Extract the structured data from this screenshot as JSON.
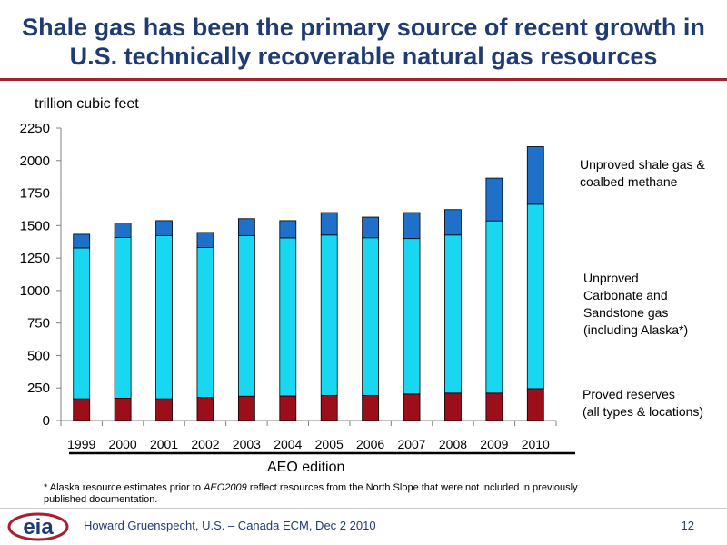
{
  "title_line1": "Shale gas has been the primary source of recent growth in",
  "title_line2": "U.S. technically recoverable natural gas resources",
  "chart_data": {
    "type": "bar",
    "stacked": true,
    "ylabel": "trillion cubic feet",
    "xlabel": "AEO edition",
    "ylim": [
      0,
      2250
    ],
    "yticks": [
      0,
      250,
      500,
      750,
      1000,
      1250,
      1500,
      1750,
      2000,
      2250
    ],
    "categories": [
      "1999",
      "2000",
      "2001",
      "2002",
      "2003",
      "2004",
      "2005",
      "2006",
      "2007",
      "2008",
      "2009",
      "2010"
    ],
    "series": [
      {
        "name": "Proved reserves (all types & locations)",
        "color": "#9b0e1a",
        "values": [
          167,
          172,
          167,
          177,
          187,
          189,
          193,
          193,
          204,
          211,
          211,
          245
        ]
      },
      {
        "name": "Unproved Carbonate and Sandstone gas (including Alaska*)",
        "color": "#19d7f0",
        "values": [
          1161,
          1236,
          1256,
          1154,
          1236,
          1216,
          1234,
          1213,
          1196,
          1216,
          1325,
          1419
        ]
      },
      {
        "name": "Unproved shale gas & coalbed methane",
        "color": "#1f70c8",
        "values": [
          105,
          111,
          115,
          116,
          130,
          133,
          173,
          159,
          200,
          196,
          329,
          443
        ]
      }
    ],
    "legend_placement": "right",
    "grid": false
  },
  "legend": {
    "shale_line1": "Unproved shale gas &",
    "shale_line2": "coalbed methane",
    "carb_line1": "Unproved",
    "carb_line2": "Carbonate and",
    "carb_line3": "Sandstone gas",
    "carb_line4": "(including Alaska*)",
    "proved_line1": "Proved reserves",
    "proved_line2": "(all types & locations)"
  },
  "footnote_prefix": "*  Alaska resource estimates prior to ",
  "footnote_em": "AEO2009",
  "footnote_suffix": " reflect resources from the North Slope that were not included in previously published documentation.",
  "footer": {
    "author": "Howard Gruenspecht, U.S. – Canada ECM, Dec 2 2010",
    "page": "12",
    "logo_text": "eia"
  },
  "colors": {
    "title": "#1f3b73",
    "rule": "#a8202e"
  }
}
